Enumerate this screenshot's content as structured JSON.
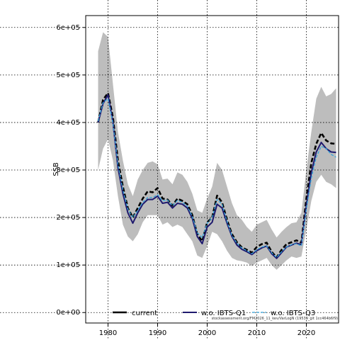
{
  "chart_data": {
    "type": "line",
    "xlabel": "",
    "ylabel": "SSB",
    "xlim": [
      1975.5,
      2026.5
    ],
    "ylim": [
      -22000,
      625000
    ],
    "x_ticks": [
      1980,
      1990,
      2000,
      2010,
      2020
    ],
    "y_ticks": [
      {
        "value": 0,
        "label": "0e+00"
      },
      {
        "value": 100000,
        "label": "1e+05"
      },
      {
        "value": 200000,
        "label": "2e+05"
      },
      {
        "value": 300000,
        "label": "3e+05"
      },
      {
        "value": 400000,
        "label": "4e+05"
      },
      {
        "value": 500000,
        "label": "5e+05"
      },
      {
        "value": 600000,
        "label": "6e+05"
      }
    ],
    "grid": true,
    "legend_position": "bottom",
    "x": [
      1978,
      1979,
      1980,
      1981,
      1982,
      1983,
      1984,
      1985,
      1986,
      1987,
      1988,
      1989,
      1990,
      1991,
      1992,
      1993,
      1994,
      1995,
      1996,
      1997,
      1998,
      1999,
      2000,
      2001,
      2002,
      2003,
      2004,
      2005,
      2006,
      2007,
      2008,
      2009,
      2010,
      2011,
      2012,
      2013,
      2014,
      2015,
      2016,
      2017,
      2018,
      2019,
      2020,
      2021,
      2022,
      2023,
      2024,
      2025,
      2026
    ],
    "band": {
      "upper": [
        550000,
        590000,
        580000,
        480000,
        380000,
        320000,
        270000,
        245000,
        280000,
        300000,
        315000,
        318000,
        312000,
        280000,
        282000,
        270000,
        295000,
        290000,
        275000,
        250000,
        215000,
        210000,
        240000,
        265000,
        315000,
        300000,
        265000,
        230000,
        205000,
        195000,
        180000,
        170000,
        185000,
        190000,
        195000,
        175000,
        158000,
        170000,
        180000,
        188000,
        190000,
        210000,
        300000,
        380000,
        450000,
        475000,
        455000,
        460000,
        472000
      ],
      "lower": [
        300000,
        345000,
        365000,
        320000,
        245000,
        185000,
        160000,
        150000,
        165000,
        190000,
        205000,
        205000,
        205000,
        185000,
        190000,
        180000,
        185000,
        180000,
        165000,
        150000,
        120000,
        115000,
        140000,
        170000,
        165000,
        150000,
        130000,
        115000,
        110000,
        108000,
        105000,
        98000,
        105000,
        110000,
        115000,
        100000,
        90000,
        100000,
        110000,
        118000,
        115000,
        118000,
        175000,
        235000,
        275000,
        290000,
        275000,
        270000,
        262000
      ]
    },
    "series": [
      {
        "name": "current",
        "color": "#000000",
        "style": "dashed-thick",
        "values": [
          400000,
          448000,
          462000,
          410000,
          320000,
          265000,
          220000,
          200000,
          220000,
          240000,
          255000,
          253000,
          262000,
          240000,
          238000,
          225000,
          240000,
          235000,
          228000,
          205000,
          165000,
          150000,
          190000,
          200000,
          246000,
          232000,
          195000,
          165000,
          148000,
          137000,
          132000,
          126000,
          138000,
          144000,
          147000,
          128000,
          116000,
          132000,
          144000,
          148000,
          152000,
          147000,
          240000,
          315000,
          355000,
          378000,
          362000,
          356000,
          355000
        ]
      },
      {
        "name": "w.o. IBTS-Q1",
        "color": "#1f1a6e",
        "style": "solid",
        "values": [
          400000,
          440000,
          458000,
          400000,
          305000,
          250000,
          210000,
          188000,
          210000,
          228000,
          238000,
          238000,
          245000,
          230000,
          232000,
          220000,
          230000,
          228000,
          220000,
          198000,
          160000,
          145000,
          180000,
          190000,
          228000,
          220000,
          188000,
          160000,
          142000,
          133000,
          128000,
          122000,
          130000,
          136000,
          140000,
          124000,
          114000,
          126000,
          138000,
          142000,
          146000,
          143000,
          225000,
          295000,
          338000,
          358000,
          345000,
          338000,
          337000
        ]
      },
      {
        "name": "w.o. IBTS-Q3",
        "color": "#35a3dc",
        "style": "dashed",
        "values": [
          403000,
          442000,
          450000,
          398000,
          312000,
          258000,
          218000,
          200000,
          215000,
          232000,
          242000,
          242000,
          248000,
          235000,
          237000,
          225000,
          236000,
          232000,
          224000,
          202000,
          168000,
          158000,
          188000,
          200000,
          238000,
          228000,
          192000,
          162000,
          146000,
          136000,
          130000,
          124000,
          132000,
          138000,
          140000,
          126000,
          116000,
          128000,
          138000,
          143000,
          145000,
          140000,
          218000,
          283000,
          327000,
          350000,
          345000,
          333000,
          327000
        ]
      }
    ]
  },
  "footnote": "stockassessment.org/FM2026_11_kev/VarLogN (19539_git 1cc464b6f9)"
}
